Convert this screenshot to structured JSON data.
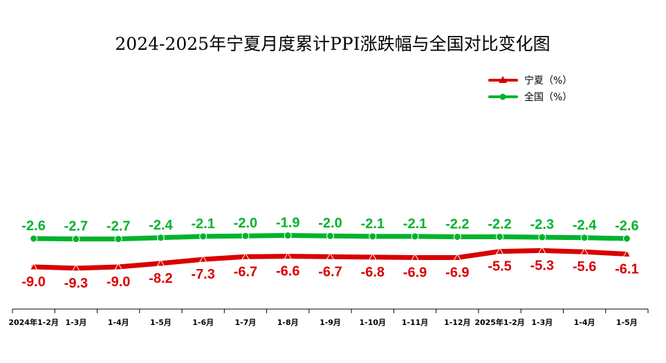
{
  "chart_data": {
    "type": "line",
    "title": "2024-2025年宁夏月度累计PPI涨跌幅与全国对比变化图",
    "categories": [
      "2024年1-2月",
      "1-3月",
      "1-4月",
      "1-5月",
      "1-6月",
      "1-7月",
      "1-8月",
      "1-9月",
      "1-10月",
      "1-11月",
      "1-12月",
      "2025年1-2月",
      "1-3月",
      "1-4月",
      "1-5月"
    ],
    "series": [
      {
        "name": "宁夏（%）",
        "color": "#d90000",
        "marker": "triangle",
        "values": [
          -9.0,
          -9.3,
          -9.0,
          -8.2,
          -7.3,
          -6.7,
          -6.6,
          -6.7,
          -6.8,
          -6.9,
          -6.9,
          -5.5,
          -5.3,
          -5.6,
          -6.1
        ],
        "labels": [
          "-9.0",
          "-9.3",
          "-9.0",
          "-8.2",
          "-7.3",
          "-6.7",
          "-6.6",
          "-6.7",
          "-6.8",
          "-6.9",
          "-6.9",
          "-5.5",
          "-5.3",
          "-5.6",
          "-6.1"
        ]
      },
      {
        "name": "全国（%）",
        "color": "#00b32c",
        "marker": "circle",
        "values": [
          -2.6,
          -2.7,
          -2.7,
          -2.4,
          -2.1,
          -2.0,
          -1.9,
          -2.0,
          -2.1,
          -2.1,
          -2.2,
          -2.2,
          -2.3,
          -2.4,
          -2.6
        ],
        "labels": [
          "-2.6",
          "-2.7",
          "-2.7",
          "-2.4",
          "-2.1",
          "-2.0",
          "-1.9",
          "-2.0",
          "-2.1",
          "-2.1",
          "-2.2",
          "-2.2",
          "-2.3",
          "-2.4",
          "-2.6"
        ]
      }
    ],
    "legend_position": "top-right",
    "grid": false
  }
}
